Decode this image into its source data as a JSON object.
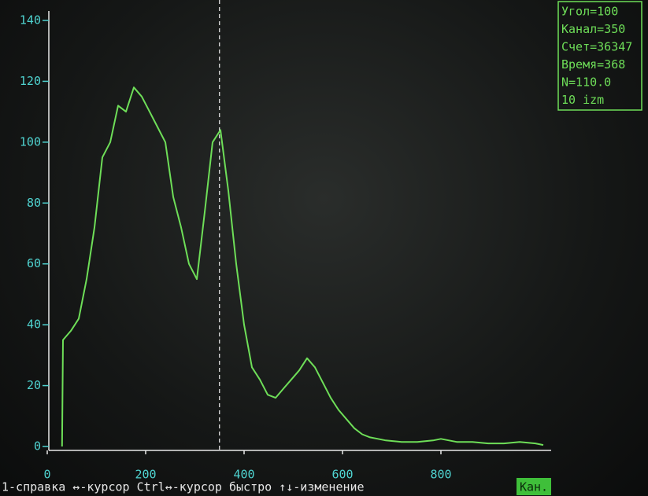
{
  "chart_data": {
    "type": "line",
    "x": [
      30,
      32,
      48,
      64,
      80,
      96,
      112,
      128,
      144,
      160,
      176,
      192,
      208,
      224,
      240,
      256,
      272,
      288,
      304,
      320,
      336,
      352,
      368,
      384,
      400,
      416,
      432,
      448,
      464,
      480,
      496,
      512,
      528,
      544,
      560,
      576,
      592,
      608,
      624,
      640,
      656,
      672,
      688,
      720,
      752,
      784,
      800,
      832,
      864,
      896,
      928,
      960,
      992,
      1008
    ],
    "values": [
      0,
      35,
      38,
      42,
      55,
      72,
      95,
      100,
      112,
      110,
      118,
      115,
      110,
      105,
      100,
      82,
      72,
      60,
      55,
      77,
      100,
      104,
      84,
      60,
      40,
      26,
      22,
      17,
      16,
      19,
      22,
      25,
      29,
      26,
      21,
      16,
      12,
      9,
      6,
      4,
      3,
      2.5,
      2,
      1.5,
      1.5,
      2,
      2.5,
      1.5,
      1.5,
      1,
      1,
      1.5,
      1,
      0.5
    ],
    "color": "#6ede58",
    "xlim": [
      0,
      1024
    ],
    "ylim": [
      0,
      140
    ],
    "xticks": [
      0,
      200,
      400,
      600,
      800
    ],
    "yticks": [
      0,
      20,
      40,
      60,
      80,
      100,
      120,
      140
    ],
    "xlabel": "Кан.",
    "cursor_x": 350,
    "annotations": [
      "Угол=100",
      "Канал=350",
      "Счет=36347",
      "Время=368",
      "N=110.0",
      "10 izm"
    ],
    "status_bar": "1-справка ↔-курсор Ctrl↔-курсор быстро ↑↓-изменение"
  }
}
